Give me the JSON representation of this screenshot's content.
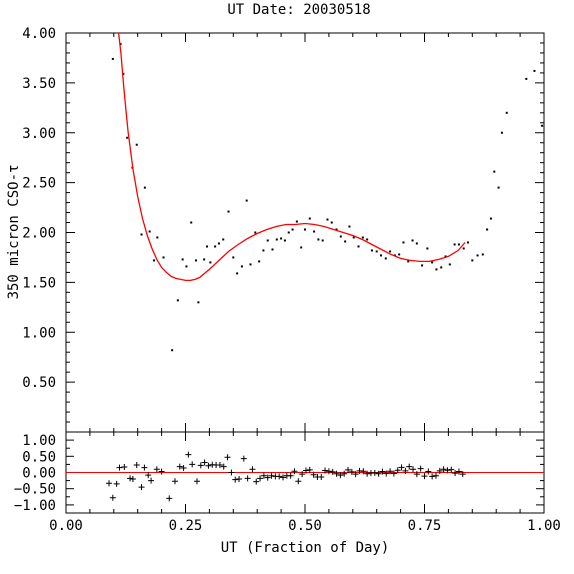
{
  "chart_data": {
    "type": "scatter",
    "title": "UT Date: 20030518",
    "xlabel": "UT (Fraction of Day)",
    "colors": {
      "fit": "#ff0000",
      "points": "#000000",
      "zero_line": "#ff0000"
    },
    "panels": [
      {
        "name": "tau",
        "ylabel": "350 micron CSO-τ",
        "xlim": [
          0.0,
          1.0
        ],
        "ylim": [
          0.0,
          4.0
        ],
        "yticks": [
          {
            "v": 0.5,
            "label": "0.50"
          },
          {
            "v": 1.0,
            "label": "1.00"
          },
          {
            "v": 1.5,
            "label": "1.50"
          },
          {
            "v": 2.0,
            "label": "2.00"
          },
          {
            "v": 2.5,
            "label": "2.50"
          },
          {
            "v": 3.0,
            "label": "3.00"
          },
          {
            "v": 3.5,
            "label": "3.50"
          },
          {
            "v": 4.0,
            "label": "4.00"
          }
        ],
        "points": [
          [
            0.098,
            3.74
          ],
          [
            0.114,
            3.89
          ],
          [
            0.12,
            3.59
          ],
          [
            0.128,
            2.95
          ],
          [
            0.139,
            2.65
          ],
          [
            0.148,
            2.88
          ],
          [
            0.158,
            1.98
          ],
          [
            0.165,
            2.45
          ],
          [
            0.175,
            2.01
          ],
          [
            0.184,
            1.72
          ],
          [
            0.191,
            1.95
          ],
          [
            0.204,
            1.75
          ],
          [
            0.222,
            0.82
          ],
          [
            0.234,
            1.32
          ],
          [
            0.244,
            1.73
          ],
          [
            0.252,
            1.66
          ],
          [
            0.262,
            2.1
          ],
          [
            0.272,
            1.72
          ],
          [
            0.277,
            1.3
          ],
          [
            0.289,
            1.73
          ],
          [
            0.295,
            1.86
          ],
          [
            0.302,
            1.7
          ],
          [
            0.312,
            1.86
          ],
          [
            0.32,
            1.89
          ],
          [
            0.329,
            1.93
          ],
          [
            0.34,
            2.21
          ],
          [
            0.35,
            1.75
          ],
          [
            0.358,
            1.59
          ],
          [
            0.368,
            1.66
          ],
          [
            0.378,
            2.32
          ],
          [
            0.386,
            1.68
          ],
          [
            0.396,
            2.0
          ],
          [
            0.404,
            1.71
          ],
          [
            0.413,
            1.82
          ],
          [
            0.422,
            1.92
          ],
          [
            0.432,
            1.83
          ],
          [
            0.441,
            1.93
          ],
          [
            0.45,
            1.94
          ],
          [
            0.458,
            1.92
          ],
          [
            0.466,
            2.0
          ],
          [
            0.474,
            2.03
          ],
          [
            0.483,
            2.11
          ],
          [
            0.492,
            1.85
          ],
          [
            0.5,
            2.03
          ],
          [
            0.51,
            2.14
          ],
          [
            0.519,
            2.01
          ],
          [
            0.528,
            1.93
          ],
          [
            0.537,
            1.92
          ],
          [
            0.547,
            2.13
          ],
          [
            0.556,
            2.1
          ],
          [
            0.566,
            2.03
          ],
          [
            0.575,
            1.96
          ],
          [
            0.584,
            1.91
          ],
          [
            0.593,
            2.06
          ],
          [
            0.602,
            1.95
          ],
          [
            0.612,
            1.86
          ],
          [
            0.621,
            1.95
          ],
          [
            0.63,
            1.93
          ],
          [
            0.64,
            1.82
          ],
          [
            0.65,
            1.81
          ],
          [
            0.659,
            1.77
          ],
          [
            0.669,
            1.74
          ],
          [
            0.678,
            1.81
          ],
          [
            0.688,
            1.77
          ],
          [
            0.697,
            1.78
          ],
          [
            0.706,
            1.9
          ],
          [
            0.716,
            1.71
          ],
          [
            0.725,
            1.92
          ],
          [
            0.734,
            1.89
          ],
          [
            0.745,
            1.67
          ],
          [
            0.756,
            1.84
          ],
          [
            0.766,
            1.7
          ],
          [
            0.775,
            1.63
          ],
          [
            0.785,
            1.65
          ],
          [
            0.794,
            1.76
          ],
          [
            0.803,
            1.68
          ],
          [
            0.813,
            1.88
          ],
          [
            0.822,
            1.88
          ],
          [
            0.832,
            1.84
          ],
          [
            0.841,
            1.9
          ],
          [
            0.85,
            1.72
          ],
          [
            0.861,
            1.77
          ],
          [
            0.872,
            1.78
          ],
          [
            0.881,
            2.03
          ],
          [
            0.889,
            2.14
          ],
          [
            0.896,
            2.61
          ],
          [
            0.905,
            2.45
          ],
          [
            0.912,
            3.0
          ],
          [
            0.922,
            3.2
          ],
          [
            0.963,
            3.54
          ],
          [
            0.98,
            3.62
          ],
          [
            0.996,
            3.07
          ]
        ],
        "fit_curve": [
          [
            0.11,
            4.0
          ],
          [
            0.115,
            3.79
          ],
          [
            0.12,
            3.5
          ],
          [
            0.125,
            3.24
          ],
          [
            0.13,
            3.01
          ],
          [
            0.14,
            2.64
          ],
          [
            0.15,
            2.36
          ],
          [
            0.16,
            2.14
          ],
          [
            0.17,
            1.97
          ],
          [
            0.18,
            1.84
          ],
          [
            0.19,
            1.73
          ],
          [
            0.2,
            1.65
          ],
          [
            0.21,
            1.6
          ],
          [
            0.22,
            1.56
          ],
          [
            0.23,
            1.54
          ],
          [
            0.24,
            1.53
          ],
          [
            0.25,
            1.52
          ],
          [
            0.26,
            1.52
          ],
          [
            0.27,
            1.53
          ],
          [
            0.28,
            1.55
          ],
          [
            0.29,
            1.59
          ],
          [
            0.3,
            1.63
          ],
          [
            0.32,
            1.72
          ],
          [
            0.34,
            1.81
          ],
          [
            0.36,
            1.88
          ],
          [
            0.38,
            1.94
          ],
          [
            0.4,
            1.99
          ],
          [
            0.42,
            2.03
          ],
          [
            0.44,
            2.06
          ],
          [
            0.46,
            2.08
          ],
          [
            0.48,
            2.08
          ],
          [
            0.5,
            2.09
          ],
          [
            0.52,
            2.08
          ],
          [
            0.54,
            2.06
          ],
          [
            0.56,
            2.03
          ],
          [
            0.58,
            2.0
          ],
          [
            0.6,
            1.97
          ],
          [
            0.62,
            1.93
          ],
          [
            0.64,
            1.88
          ],
          [
            0.66,
            1.83
          ],
          [
            0.68,
            1.78
          ],
          [
            0.7,
            1.74
          ],
          [
            0.72,
            1.72
          ],
          [
            0.74,
            1.71
          ],
          [
            0.76,
            1.71
          ],
          [
            0.78,
            1.73
          ],
          [
            0.8,
            1.76
          ],
          [
            0.82,
            1.82
          ],
          [
            0.835,
            1.9
          ]
        ]
      },
      {
        "name": "residuals",
        "ylabel": "",
        "xlim": [
          0.0,
          1.0
        ],
        "ylim": [
          -1.25,
          1.25
        ],
        "yticks": [
          {
            "v": -1.0,
            "label": "−1.00"
          },
          {
            "v": -0.5,
            "label": "−0.50"
          },
          {
            "v": 0.0,
            "label": "0.00"
          },
          {
            "v": 0.5,
            "label": "0.50"
          },
          {
            "v": 1.0,
            "label": "1.00"
          }
        ],
        "zero_line": 0.0,
        "points": [
          [
            0.09,
            -0.33
          ],
          [
            0.098,
            -0.78
          ],
          [
            0.106,
            -0.35
          ],
          [
            0.112,
            0.15
          ],
          [
            0.122,
            0.17
          ],
          [
            0.134,
            -0.18
          ],
          [
            0.14,
            -0.2
          ],
          [
            0.148,
            0.23
          ],
          [
            0.158,
            -0.45
          ],
          [
            0.164,
            0.15
          ],
          [
            0.172,
            -0.08
          ],
          [
            0.178,
            -0.25
          ],
          [
            0.19,
            0.1
          ],
          [
            0.2,
            0.03
          ],
          [
            0.216,
            -0.8
          ],
          [
            0.228,
            -0.27
          ],
          [
            0.238,
            0.18
          ],
          [
            0.246,
            0.14
          ],
          [
            0.256,
            0.55
          ],
          [
            0.264,
            0.25
          ],
          [
            0.274,
            -0.27
          ],
          [
            0.282,
            0.22
          ],
          [
            0.29,
            0.31
          ],
          [
            0.298,
            0.21
          ],
          [
            0.306,
            0.24
          ],
          [
            0.314,
            0.23
          ],
          [
            0.322,
            0.23
          ],
          [
            0.33,
            0.18
          ],
          [
            0.338,
            0.47
          ],
          [
            0.346,
            0.0
          ],
          [
            0.354,
            -0.22
          ],
          [
            0.362,
            -0.2
          ],
          [
            0.372,
            0.43
          ],
          [
            0.38,
            -0.18
          ],
          [
            0.39,
            0.1
          ],
          [
            0.398,
            -0.28
          ],
          [
            0.406,
            -0.18
          ],
          [
            0.414,
            -0.1
          ],
          [
            0.422,
            -0.16
          ],
          [
            0.43,
            -0.1
          ],
          [
            0.438,
            -0.12
          ],
          [
            0.446,
            -0.12
          ],
          [
            0.454,
            -0.15
          ],
          [
            0.462,
            -0.1
          ],
          [
            0.47,
            -0.1
          ],
          [
            0.478,
            0.04
          ],
          [
            0.486,
            -0.27
          ],
          [
            0.494,
            -0.05
          ],
          [
            0.502,
            0.06
          ],
          [
            0.51,
            0.08
          ],
          [
            0.518,
            -0.07
          ],
          [
            0.526,
            -0.14
          ],
          [
            0.534,
            -0.14
          ],
          [
            0.542,
            0.06
          ],
          [
            0.55,
            0.04
          ],
          [
            0.558,
            0.02
          ],
          [
            0.566,
            -0.04
          ],
          [
            0.574,
            -0.08
          ],
          [
            0.582,
            -0.04
          ],
          [
            0.59,
            0.08
          ],
          [
            0.598,
            0.02
          ],
          [
            0.606,
            -0.05
          ],
          [
            0.614,
            0.05
          ],
          [
            0.622,
            0.04
          ],
          [
            0.63,
            -0.04
          ],
          [
            0.638,
            -0.02
          ],
          [
            0.646,
            -0.01
          ],
          [
            0.654,
            -0.04
          ],
          [
            0.662,
            0.03
          ],
          [
            0.67,
            -0.03
          ],
          [
            0.678,
            0.04
          ],
          [
            0.686,
            -0.03
          ],
          [
            0.694,
            0.07
          ],
          [
            0.702,
            0.16
          ],
          [
            0.71,
            0.05
          ],
          [
            0.718,
            0.18
          ],
          [
            0.726,
            0.1
          ],
          [
            0.734,
            -0.05
          ],
          [
            0.742,
            0.12
          ],
          [
            0.75,
            -0.11
          ],
          [
            0.758,
            0.03
          ],
          [
            0.766,
            -0.12
          ],
          [
            0.774,
            -0.1
          ],
          [
            0.782,
            0.05
          ],
          [
            0.79,
            0.1
          ],
          [
            0.798,
            0.07
          ],
          [
            0.806,
            0.09
          ],
          [
            0.814,
            -0.02
          ],
          [
            0.822,
            0.03
          ],
          [
            0.83,
            -0.05
          ]
        ]
      }
    ],
    "xticks": [
      {
        "v": 0.0,
        "label": "0.00"
      },
      {
        "v": 0.25,
        "label": "0.25"
      },
      {
        "v": 0.5,
        "label": "0.50"
      },
      {
        "v": 0.75,
        "label": "0.75"
      },
      {
        "v": 1.0,
        "label": "1.00"
      }
    ],
    "grid": false
  }
}
